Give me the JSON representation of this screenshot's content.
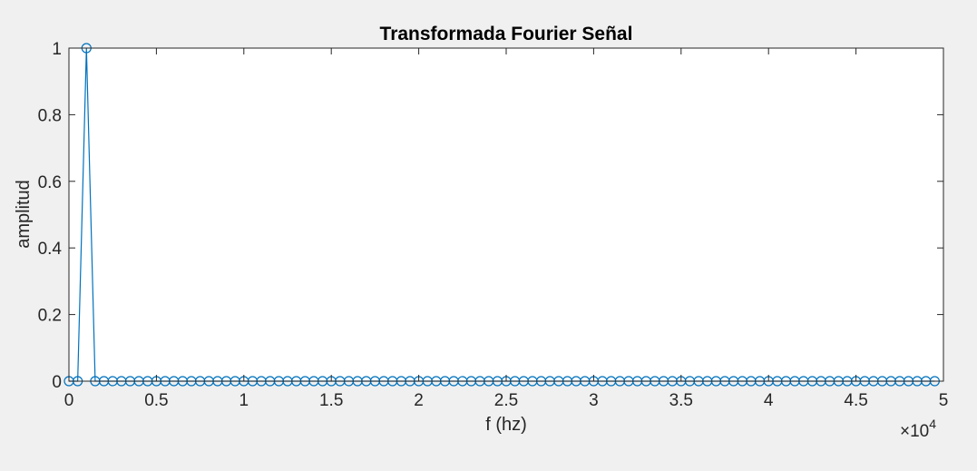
{
  "chart_data": {
    "type": "line",
    "title": "Transformada Fourier Señal",
    "xlabel": "f (hz)",
    "ylabel": "amplitud",
    "x_exponent_label": "×10",
    "x_exponent_power": "4",
    "xlim": [
      0,
      50000
    ],
    "ylim": [
      0,
      1
    ],
    "xticks": [
      0,
      5000,
      10000,
      15000,
      20000,
      25000,
      30000,
      35000,
      40000,
      45000,
      50000
    ],
    "xtick_labels": [
      "0",
      "0.5",
      "1",
      "1.5",
      "2",
      "2.5",
      "3",
      "3.5",
      "4",
      "4.5",
      "5"
    ],
    "yticks": [
      0,
      0.2,
      0.4,
      0.6,
      0.8,
      1
    ],
    "ytick_labels": [
      "0",
      "0.2",
      "0.4",
      "0.6",
      "0.8",
      "1"
    ],
    "marker": "circle",
    "color": "#0072bd",
    "grid": false,
    "series": [
      {
        "x_start": 0,
        "x_step": 500,
        "x_end": 49500,
        "y_default": 0,
        "peaks": [
          {
            "x": 1000,
            "y": 1
          }
        ]
      }
    ]
  }
}
